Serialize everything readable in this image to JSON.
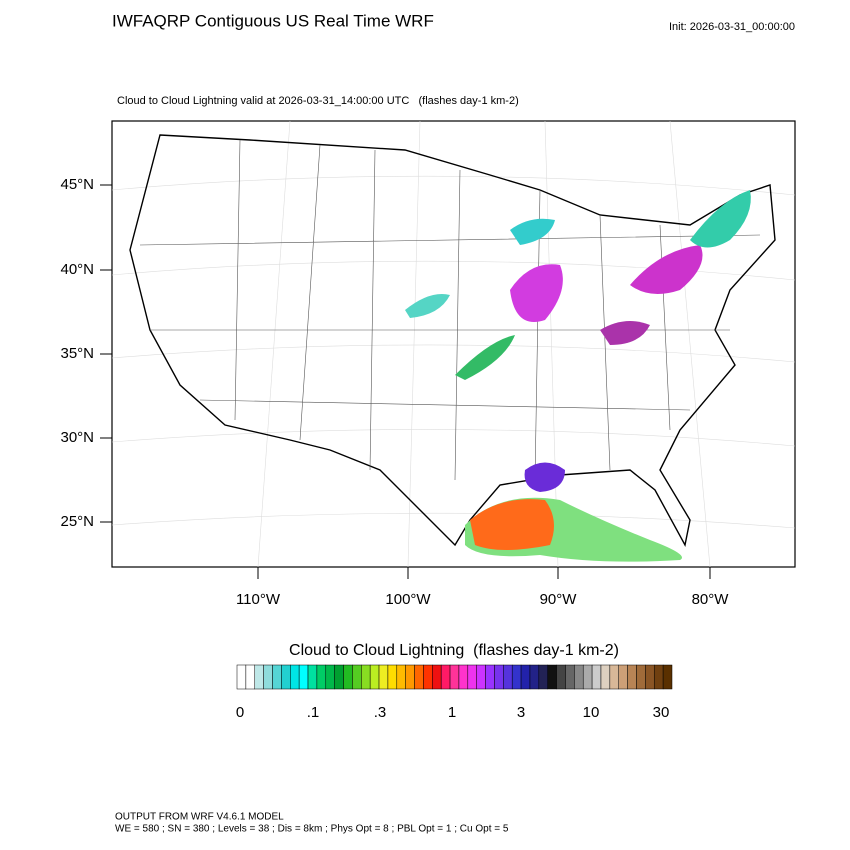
{
  "header": {
    "title": "IWFAQRP Contiguous US Real Time WRF",
    "init": "Init: 2026-03-31_00:00:00"
  },
  "map": {
    "subtitle": "Cloud to Cloud Lightning valid at 2026-03-31_14:00:00 UTC   (flashes day-1 km-2)",
    "lat_labels": [
      "45°N",
      "40°N",
      "35°N",
      "30°N",
      "25°N"
    ],
    "lon_labels": [
      "110°W",
      "100°W",
      "90°W",
      "80°W"
    ]
  },
  "colorbar": {
    "title": "Cloud to Cloud Lightning  (flashes day-1 km-2)",
    "labels": [
      "0",
      ".1",
      ".3",
      "1",
      "3",
      "10",
      "30"
    ]
  },
  "footer": {
    "line1": "OUTPUT FROM WRF V4.6.1 MODEL",
    "line2": "WE = 580 ; SN = 380 ; Levels = 38 ; Dis = 8km ; Phys Opt = 8 ; PBL Opt = 1 ; Cu Opt = 5"
  }
}
